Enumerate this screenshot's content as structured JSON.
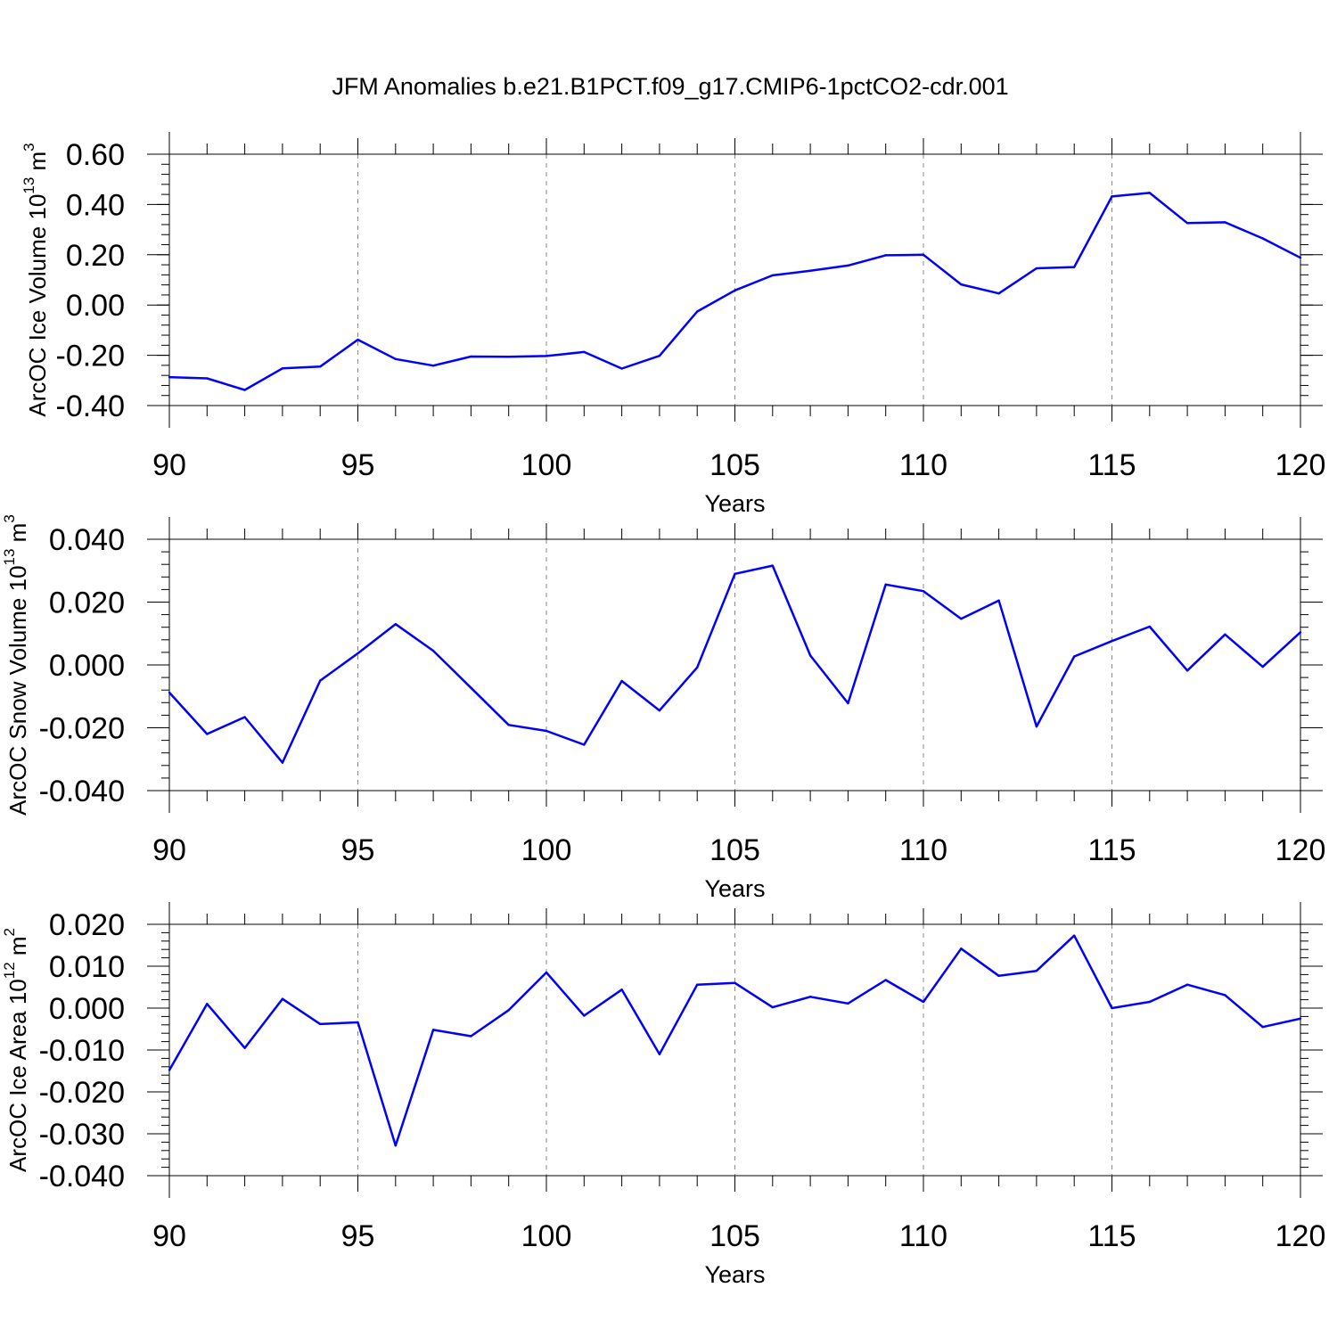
{
  "title": "JFM Anomalies b.e21.B1PCT.f09_g17.CMIP6-1pctCO2-cdr.001",
  "line_color": "#0000ff",
  "chart_data": [
    {
      "type": "line",
      "title": "JFM Anomalies b.e21.B1PCT.f09_g17.CMIP6-1pctCO2-cdr.001",
      "xlabel": "Years",
      "ylabel": {
        "text": "ArcOC Ice Volume 10",
        "exponent": "13",
        "unit": " m",
        "unit_exponent": "3"
      },
      "xlim": [
        90,
        120
      ],
      "ylim": [
        -0.4,
        0.6
      ],
      "x_ticks": [
        "90",
        "95",
        "100",
        "105",
        "110",
        "115",
        "120"
      ],
      "y_ticks": [
        "-0.40",
        "-0.20",
        "0.00",
        "0.20",
        "0.40",
        "0.60"
      ],
      "y_tick_values": [
        -0.4,
        -0.2,
        0.0,
        0.2,
        0.4,
        0.6
      ],
      "x": [
        90,
        91,
        92,
        93,
        94,
        95,
        96,
        97,
        98,
        99,
        100,
        101,
        102,
        103,
        104,
        105,
        106,
        107,
        108,
        109,
        110,
        111,
        112,
        113,
        114,
        115,
        116,
        117,
        118,
        119,
        120
      ],
      "y": [
        -0.287,
        -0.292,
        -0.338,
        -0.252,
        -0.245,
        -0.138,
        -0.215,
        -0.241,
        -0.205,
        -0.206,
        -0.203,
        -0.187,
        -0.253,
        -0.202,
        -0.026,
        0.058,
        0.118,
        0.136,
        0.157,
        0.198,
        0.2,
        0.082,
        0.046,
        0.146,
        0.151,
        0.432,
        0.446,
        0.326,
        0.329,
        0.265,
        0.188
      ],
      "grid": "vertical dashed at major x ticks"
    },
    {
      "type": "line",
      "xlabel": "Years",
      "ylabel": {
        "text": "ArcOC Snow Volume 10",
        "exponent": "13",
        "unit": " m",
        "unit_exponent": "3"
      },
      "xlim": [
        90,
        120
      ],
      "ylim": [
        -0.04,
        0.04
      ],
      "x_ticks": [
        "90",
        "95",
        "100",
        "105",
        "110",
        "115",
        "120"
      ],
      "y_ticks": [
        "-0.040",
        "-0.020",
        "0.000",
        "0.020",
        "0.040"
      ],
      "y_tick_values": [
        -0.04,
        -0.02,
        0.0,
        0.02,
        0.04
      ],
      "x": [
        90,
        91,
        92,
        93,
        94,
        95,
        96,
        97,
        98,
        99,
        100,
        101,
        102,
        103,
        104,
        105,
        106,
        107,
        108,
        109,
        110,
        111,
        112,
        113,
        114,
        115,
        116,
        117,
        118,
        119,
        120
      ],
      "y": [
        -0.0088,
        -0.022,
        -0.0166,
        -0.0311,
        -0.005,
        0.0037,
        0.013,
        0.0045,
        -0.0073,
        -0.0191,
        -0.021,
        -0.0254,
        -0.0051,
        -0.0145,
        -0.0008,
        0.029,
        0.0316,
        0.003,
        -0.0122,
        0.0256,
        0.0235,
        0.0147,
        0.0205,
        -0.0196,
        0.0027,
        0.0076,
        0.0122,
        -0.0018,
        0.0097,
        -0.0006,
        0.0104
      ],
      "grid": "vertical dashed at major x ticks"
    },
    {
      "type": "line",
      "xlabel": "Years",
      "ylabel": {
        "text": "ArcOC Ice Area 10",
        "exponent": "12",
        "unit": " m",
        "unit_exponent": "2"
      },
      "xlim": [
        90,
        120
      ],
      "ylim": [
        -0.04,
        0.02
      ],
      "x_ticks": [
        "90",
        "95",
        "100",
        "105",
        "110",
        "115",
        "120"
      ],
      "y_ticks": [
        "-0.040",
        "-0.030",
        "-0.020",
        "-0.010",
        "0.000",
        "0.010",
        "0.020"
      ],
      "y_tick_values": [
        -0.04,
        -0.03,
        -0.02,
        -0.01,
        0.0,
        0.01,
        0.02
      ],
      "x": [
        90,
        91,
        92,
        93,
        94,
        95,
        96,
        97,
        98,
        99,
        100,
        101,
        102,
        103,
        104,
        105,
        106,
        107,
        108,
        109,
        110,
        111,
        112,
        113,
        114,
        115,
        116,
        117,
        118,
        119,
        120
      ],
      "y": [
        -0.0148,
        0.001,
        -0.0095,
        0.0022,
        -0.0038,
        -0.0034,
        -0.0328,
        -0.0052,
        -0.0067,
        -0.0005,
        0.0085,
        -0.0018,
        0.0044,
        -0.011,
        0.0056,
        0.006,
        0.0002,
        0.0027,
        0.0011,
        0.0067,
        0.0015,
        0.0142,
        0.0077,
        0.0089,
        0.0173,
        0.0,
        0.0015,
        0.0056,
        0.0031,
        -0.0045,
        -0.0025
      ],
      "grid": "vertical dashed at major x ticks"
    }
  ]
}
